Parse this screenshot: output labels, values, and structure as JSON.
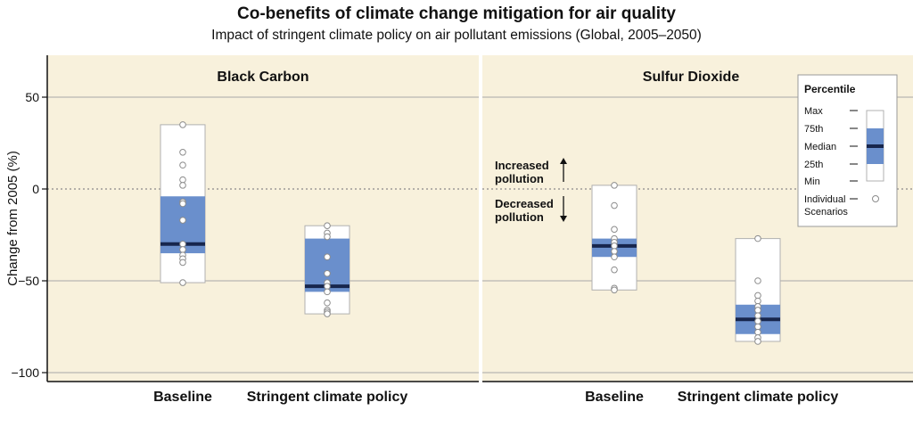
{
  "chart_data": {
    "type": "box",
    "title": "Co-benefits of climate change mitigation for air quality",
    "subtitle": "Impact of stringent climate policy on air pollutant emissions (Global, 2005–2050)",
    "ylabel": "Change from 2005 (%)",
    "ylim": [
      -100,
      70
    ],
    "yticks": [
      50,
      0,
      -50,
      -100
    ],
    "ytick_labels": [
      "50",
      "0",
      "−50",
      "−100"
    ],
    "grid": true,
    "zero_line": "dotted",
    "colors": {
      "panel_bg": "#f8f1dc",
      "box": "#ffffff",
      "iqr": "#6a8fcc",
      "median": "#17264d",
      "grid": "#a8a8a8"
    },
    "panels": [
      {
        "title": "Black Carbon",
        "categories": [
          "Baseline",
          "Stringent climate policy"
        ],
        "boxes": [
          {
            "min": -51,
            "q1": -35,
            "median": -30,
            "q3": -4,
            "max": 35,
            "scenarios": [
              35,
              20,
              13,
              5,
              2,
              -7,
              -8,
              -17,
              -30,
              -33,
              -36,
              -38,
              -40,
              -51
            ]
          },
          {
            "min": -68,
            "q1": -56,
            "median": -53,
            "q3": -27,
            "max": -20,
            "scenarios": [
              -20,
              -24,
              -26,
              -37,
              -46,
              -51,
              -53,
              -56,
              -62,
              -66,
              -67,
              -68
            ]
          }
        ]
      },
      {
        "title": "Sulfur Dioxide",
        "categories": [
          "Baseline",
          "Stringent climate policy"
        ],
        "boxes": [
          {
            "min": -55,
            "q1": -37,
            "median": -31,
            "q3": -27,
            "max": 2,
            "scenarios": [
              2,
              -9,
              -22,
              -27,
              -29,
              -31,
              -34,
              -37,
              -44,
              -54,
              -55
            ]
          },
          {
            "min": -83,
            "q1": -79,
            "median": -71,
            "q3": -63,
            "max": -27,
            "scenarios": [
              -27,
              -50,
              -58,
              -61,
              -64,
              -66,
              -69,
              -72,
              -75,
              -78,
              -81,
              -83
            ]
          }
        ]
      }
    ],
    "annotations": {
      "increased": [
        "Increased",
        "pollution"
      ],
      "decreased": [
        "Decreased",
        "pollution"
      ]
    },
    "legend": {
      "title": "Percentile",
      "placement": "top-right",
      "items": [
        "Max",
        "75th",
        "Median",
        "25th",
        "Min"
      ],
      "scenario_label": [
        "Individual",
        "Scenarios"
      ]
    }
  }
}
